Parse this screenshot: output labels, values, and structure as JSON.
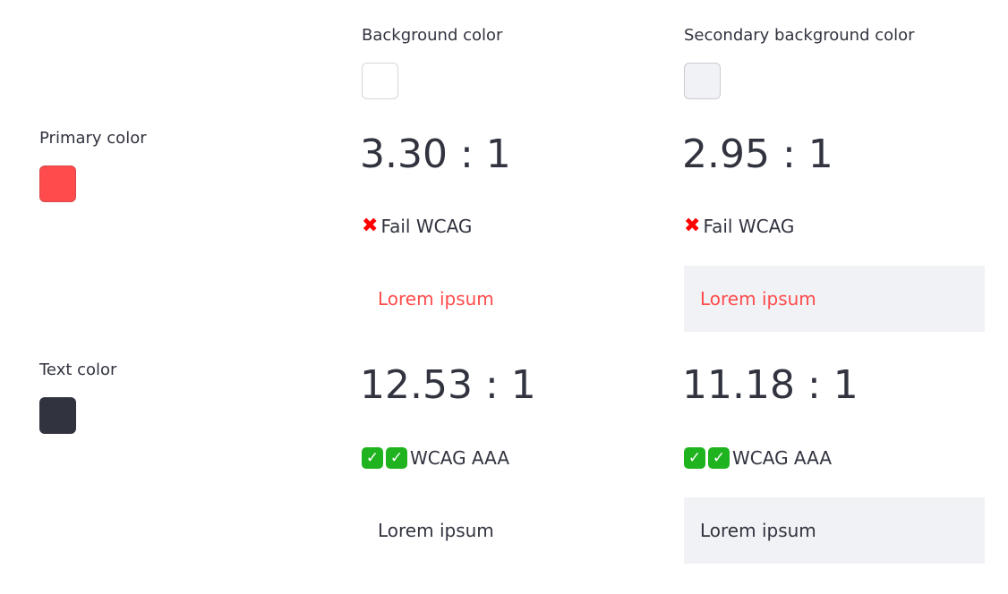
{
  "colors": {
    "primary": "#ff4b4b",
    "text": "#31333f",
    "background": "#ffffff",
    "secondary_background": "#f0f2f6",
    "fail": "#ff0000",
    "pass": "#1fb31f"
  },
  "columns": {
    "background": "Background color",
    "secondary_background": "Secondary background color"
  },
  "rows": [
    {
      "label": "Primary color",
      "background": {
        "ratio": "3.30 : 1",
        "status_icon": "cross-mark-icon",
        "status": "Fail WCAG",
        "sample": "Lorem ipsum"
      },
      "secondary": {
        "ratio": "2.95 : 1",
        "status_icon": "cross-mark-icon",
        "status": "Fail WCAG",
        "sample": "Lorem ipsum"
      }
    },
    {
      "label": "Text color",
      "background": {
        "ratio": "12.53 : 1",
        "status_icon": "check-mark-icon",
        "status": "WCAG AAA",
        "sample": "Lorem ipsum"
      },
      "secondary": {
        "ratio": "11.18 : 1",
        "status_icon": "check-mark-icon",
        "status": "WCAG AAA",
        "sample": "Lorem ipsum"
      }
    }
  ]
}
